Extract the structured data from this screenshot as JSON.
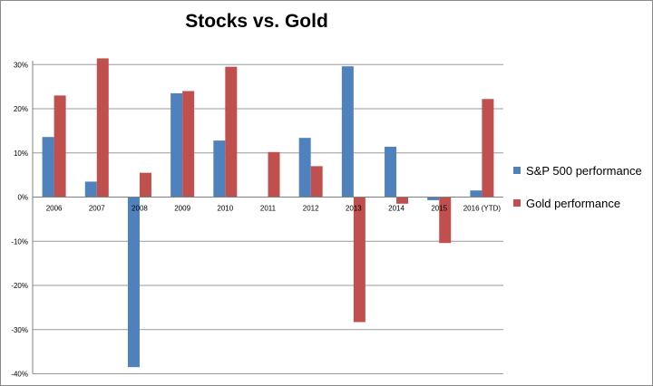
{
  "chart_data": {
    "type": "bar",
    "title": "Stocks vs. Gold",
    "xlabel": "",
    "ylabel": "",
    "categories": [
      "2006",
      "2007",
      "2008",
      "2009",
      "2010",
      "2011",
      "2012",
      "2013",
      "2014",
      "2015",
      "2016 (YTD)"
    ],
    "series": [
      {
        "name": "S&P 500 performance",
        "color": "#4f81bd",
        "values": [
          13.6,
          3.5,
          -38.5,
          23.5,
          12.8,
          0.0,
          13.4,
          29.6,
          11.4,
          -0.7,
          1.5
        ]
      },
      {
        "name": "Gold performance",
        "color": "#c0504d",
        "values": [
          23.0,
          31.4,
          5.5,
          24.0,
          29.5,
          10.2,
          7.0,
          -28.3,
          -1.5,
          -10.4,
          22.2
        ]
      }
    ],
    "y_ticks": [
      "-40%",
      "-30%",
      "-20%",
      "-10%",
      "0%",
      "10%",
      "20%",
      "30%"
    ],
    "ylim": [
      -40,
      30
    ],
    "grid": true,
    "legend_position": "right"
  }
}
